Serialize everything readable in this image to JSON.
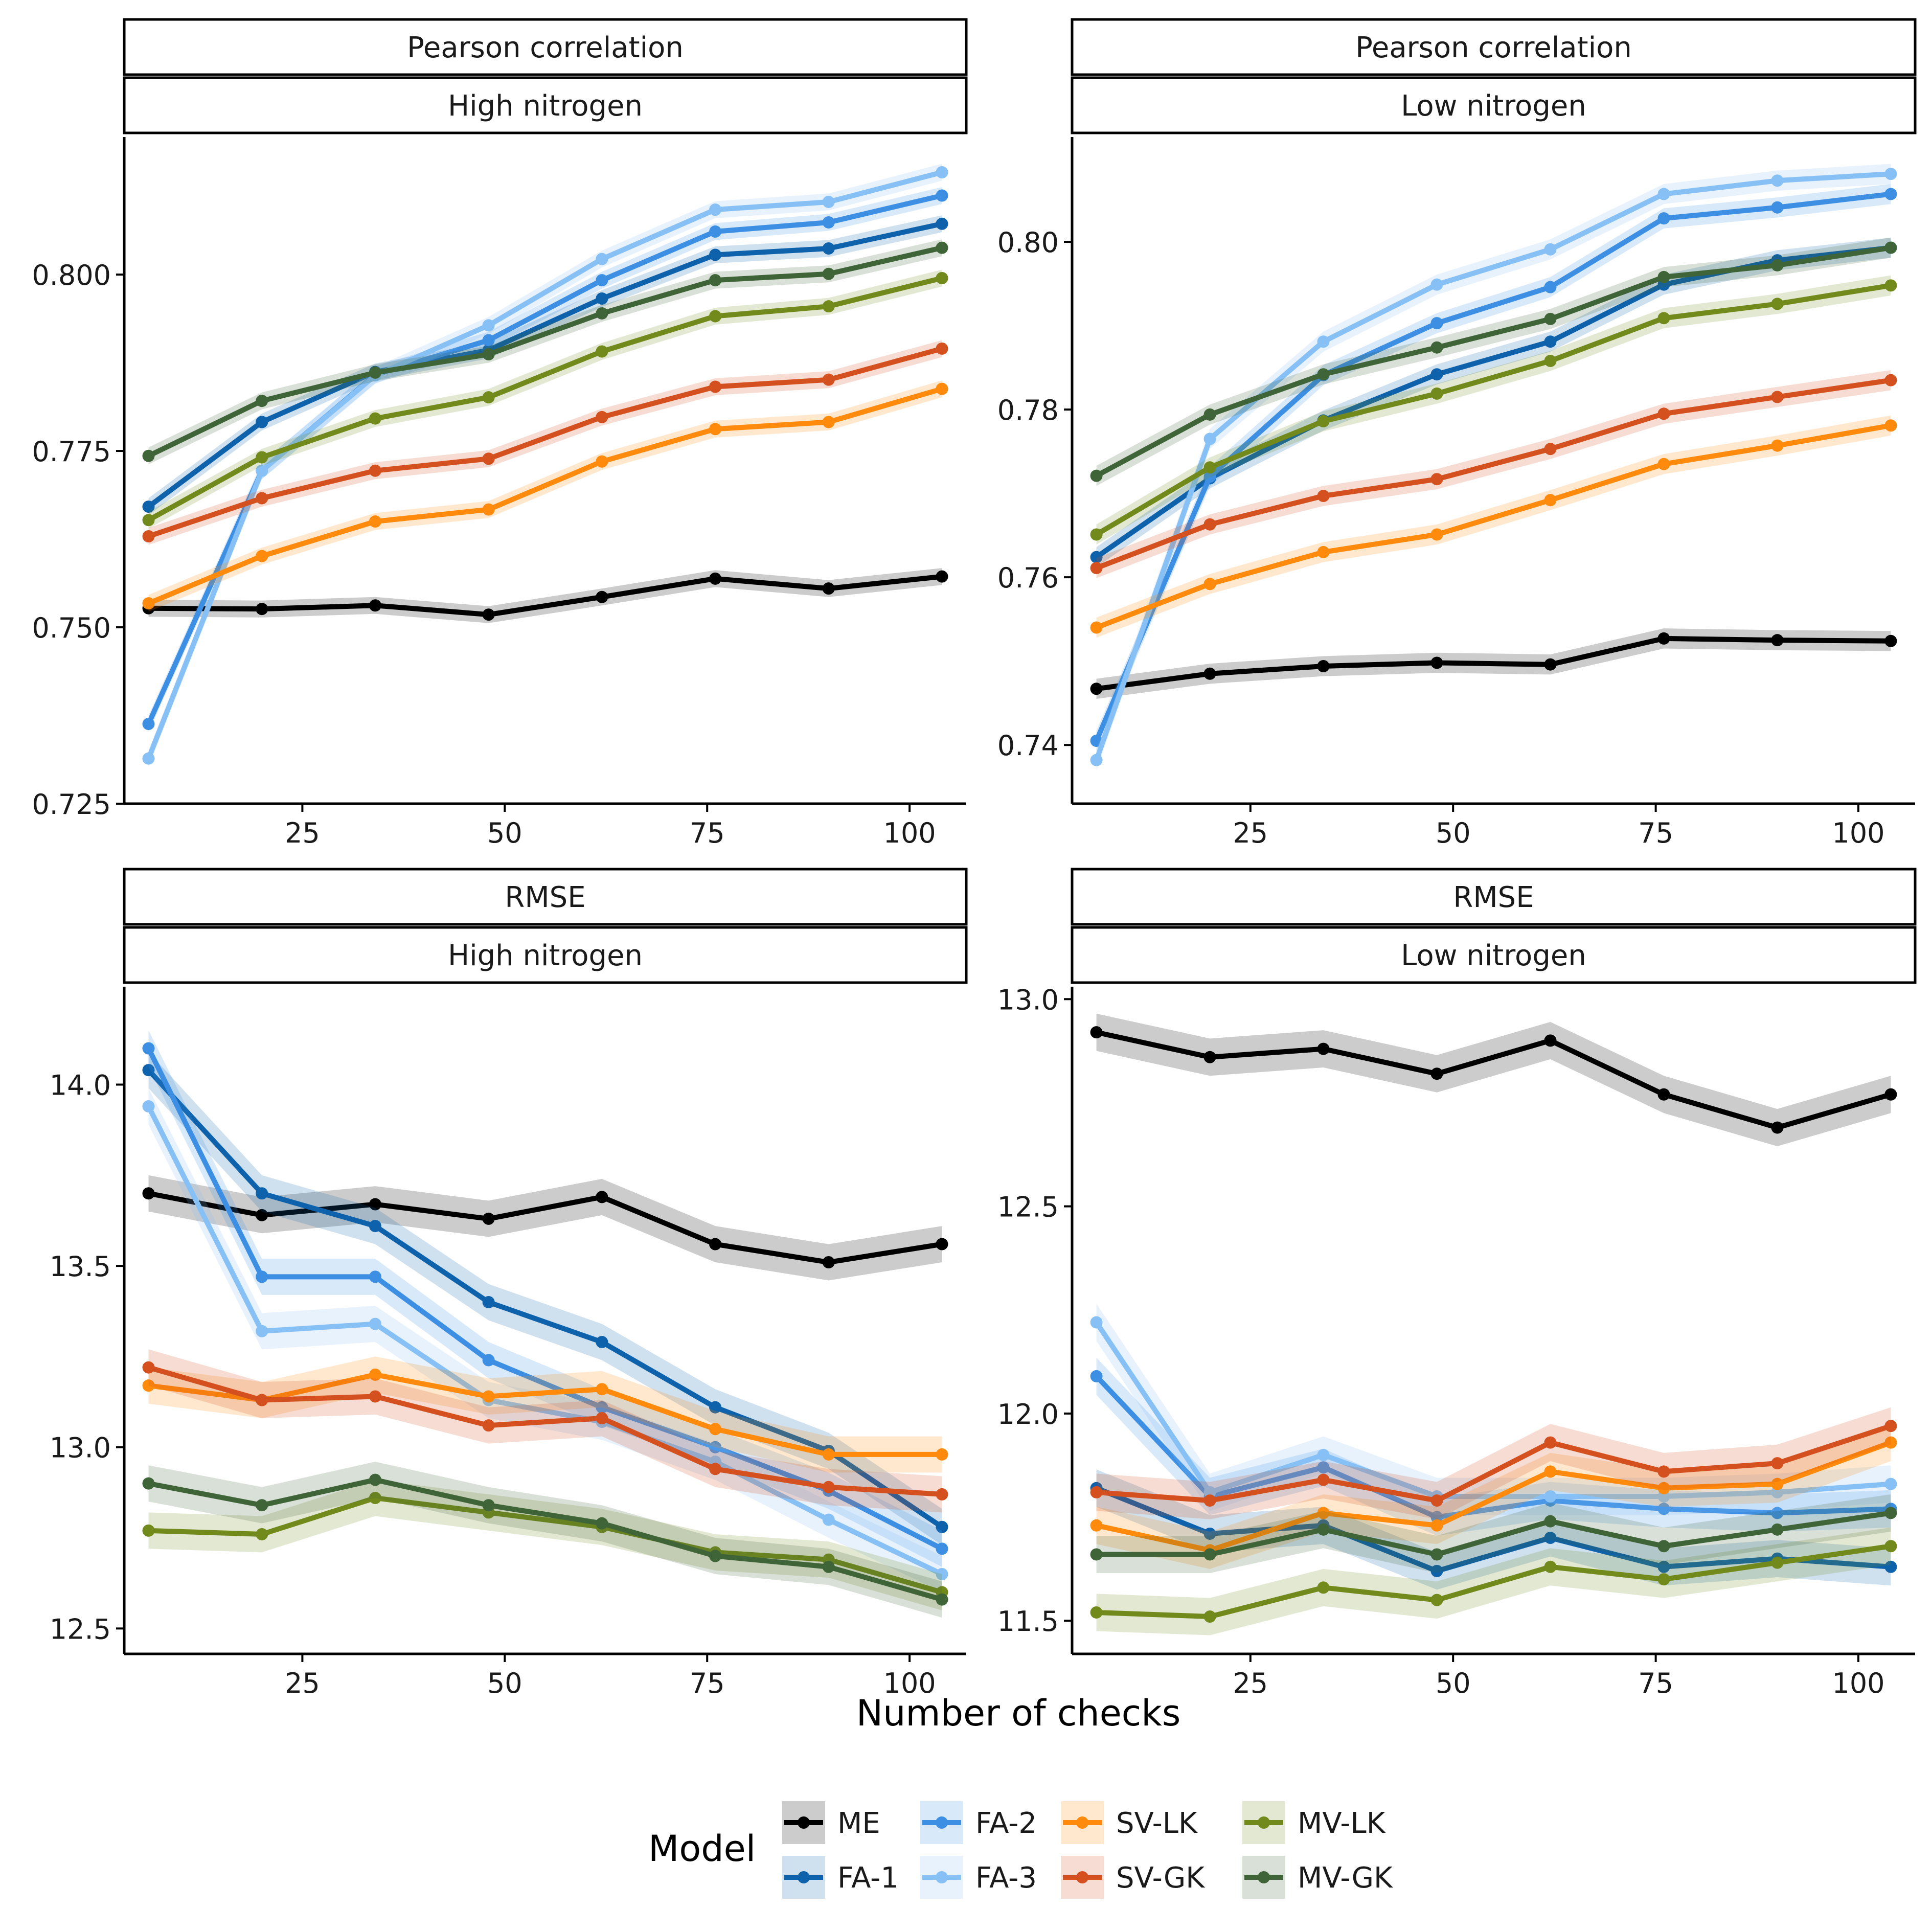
{
  "figure": {
    "xlabel": "Number of checks",
    "legend_title": "Model",
    "legend_placement": "bottom"
  },
  "models": [
    {
      "name": "ME",
      "color": "#000000"
    },
    {
      "name": "FA-1",
      "color": "#0e62ab"
    },
    {
      "name": "FA-2",
      "color": "#3d8fe4"
    },
    {
      "name": "FA-3",
      "color": "#86c0f4"
    },
    {
      "name": "SV-LK",
      "color": "#ff8a0c"
    },
    {
      "name": "SV-GK",
      "color": "#d4501e"
    },
    {
      "name": "MV-LK",
      "color": "#728a1c"
    },
    {
      "name": "MV-GK",
      "color": "#3f6438"
    }
  ],
  "chart_data": [
    {
      "type": "line",
      "strip_top": "Pearson correlation",
      "strip_bottom": "High nitrogen",
      "xlabel": "Number of checks",
      "x": [
        6,
        20,
        34,
        48,
        62,
        76,
        90,
        104
      ],
      "xlim": [
        3,
        107
      ],
      "xticks": [
        25,
        50,
        75,
        100
      ],
      "ylim": [
        0.725,
        0.8195
      ],
      "yticks": [
        0.725,
        0.75,
        0.775,
        0.8
      ],
      "ytick_labels": [
        "0.725",
        "0.750",
        "0.775",
        "0.800"
      ],
      "band": 0.0012,
      "series": [
        {
          "name": "ME",
          "values": [
            0.7527,
            0.7526,
            0.7531,
            0.7518,
            0.7543,
            0.7569,
            0.7555,
            0.7572
          ]
        },
        {
          "name": "FA-1",
          "values": [
            0.7671,
            0.7791,
            0.7862,
            0.7893,
            0.7966,
            0.8028,
            0.8037,
            0.8072
          ]
        },
        {
          "name": "FA-2",
          "values": [
            0.7363,
            0.7722,
            0.7858,
            0.7907,
            0.7992,
            0.8061,
            0.8074,
            0.8112
          ]
        },
        {
          "name": "FA-3",
          "values": [
            0.7314,
            0.7722,
            0.7857,
            0.7928,
            0.8022,
            0.8092,
            0.8103,
            0.8145
          ]
        },
        {
          "name": "SV-LK",
          "values": [
            0.7534,
            0.7601,
            0.765,
            0.7667,
            0.7735,
            0.7781,
            0.7791,
            0.7838
          ]
        },
        {
          "name": "SV-GK",
          "values": [
            0.7629,
            0.7683,
            0.7722,
            0.7739,
            0.7798,
            0.7841,
            0.7851,
            0.7895
          ]
        },
        {
          "name": "MV-LK",
          "values": [
            0.7652,
            0.7741,
            0.7796,
            0.7826,
            0.7891,
            0.7941,
            0.7955,
            0.7995
          ]
        },
        {
          "name": "MV-GK",
          "values": [
            0.7743,
            0.7821,
            0.7861,
            0.7887,
            0.7945,
            0.7992,
            0.8001,
            0.8038
          ]
        }
      ]
    },
    {
      "type": "line",
      "strip_top": "Pearson correlation",
      "strip_bottom": "Low nitrogen",
      "xlabel": "Number of checks",
      "x": [
        6,
        20,
        34,
        48,
        62,
        76,
        90,
        104
      ],
      "xlim": [
        3,
        107
      ],
      "xticks": [
        25,
        50,
        75,
        100
      ],
      "ylim": [
        0.733,
        0.8125
      ],
      "yticks": [
        0.74,
        0.76,
        0.78,
        0.8
      ],
      "ytick_labels": [
        "0.74",
        "0.76",
        "0.78",
        "0.80"
      ],
      "band": 0.0012,
      "series": [
        {
          "name": "ME",
          "values": [
            0.7467,
            0.7485,
            0.7494,
            0.7498,
            0.7496,
            0.7527,
            0.7525,
            0.7524
          ]
        },
        {
          "name": "FA-1",
          "values": [
            0.7624,
            0.7718,
            0.7787,
            0.7842,
            0.7881,
            0.7949,
            0.7978,
            0.7993
          ]
        },
        {
          "name": "FA-2",
          "values": [
            0.7405,
            0.772,
            0.7841,
            0.7903,
            0.7946,
            0.8028,
            0.8041,
            0.8057
          ]
        },
        {
          "name": "FA-3",
          "values": [
            0.7382,
            0.7765,
            0.7881,
            0.7949,
            0.7991,
            0.8057,
            0.8073,
            0.8081
          ]
        },
        {
          "name": "SV-LK",
          "values": [
            0.754,
            0.7592,
            0.763,
            0.7651,
            0.7692,
            0.7735,
            0.7757,
            0.7781
          ]
        },
        {
          "name": "SV-GK",
          "values": [
            0.7611,
            0.7663,
            0.7697,
            0.7717,
            0.7753,
            0.7795,
            0.7815,
            0.7835
          ]
        },
        {
          "name": "MV-LK",
          "values": [
            0.7651,
            0.7731,
            0.7786,
            0.7819,
            0.7858,
            0.7909,
            0.7926,
            0.7948
          ]
        },
        {
          "name": "MV-GK",
          "values": [
            0.7721,
            0.7794,
            0.7842,
            0.7874,
            0.7908,
            0.7958,
            0.7972,
            0.7993
          ]
        }
      ]
    },
    {
      "type": "line",
      "strip_top": "RMSE",
      "strip_bottom": "High nitrogen",
      "xlabel": "Number of checks",
      "x": [
        6,
        20,
        34,
        48,
        62,
        76,
        90,
        104
      ],
      "xlim": [
        3,
        107
      ],
      "xticks": [
        25,
        50,
        75,
        100
      ],
      "ylim": [
        12.43,
        14.27
      ],
      "yticks": [
        12.5,
        13.0,
        13.5,
        14.0
      ],
      "ytick_labels": [
        "12.5",
        "13.0",
        "13.5",
        "14.0"
      ],
      "band": 0.05,
      "series": [
        {
          "name": "ME",
          "values": [
            13.7,
            13.64,
            13.67,
            13.63,
            13.69,
            13.56,
            13.51,
            13.56
          ]
        },
        {
          "name": "FA-1",
          "values": [
            14.04,
            13.7,
            13.61,
            13.4,
            13.29,
            13.11,
            12.99,
            12.78
          ]
        },
        {
          "name": "FA-2",
          "values": [
            14.1,
            13.47,
            13.47,
            13.24,
            13.11,
            13.0,
            12.88,
            12.72
          ]
        },
        {
          "name": "FA-3",
          "values": [
            13.94,
            13.32,
            13.34,
            13.13,
            13.07,
            12.96,
            12.8,
            12.65
          ]
        },
        {
          "name": "SV-LK",
          "values": [
            13.17,
            13.13,
            13.2,
            13.14,
            13.16,
            13.05,
            12.98,
            12.98
          ]
        },
        {
          "name": "SV-GK",
          "values": [
            13.22,
            13.13,
            13.14,
            13.06,
            13.08,
            12.94,
            12.89,
            12.87
          ]
        },
        {
          "name": "MV-LK",
          "values": [
            12.77,
            12.76,
            12.86,
            12.82,
            12.78,
            12.71,
            12.69,
            12.6
          ]
        },
        {
          "name": "MV-GK",
          "values": [
            12.9,
            12.84,
            12.91,
            12.84,
            12.79,
            12.7,
            12.67,
            12.58
          ]
        }
      ]
    },
    {
      "type": "line",
      "strip_top": "RMSE",
      "strip_bottom": "Low nitrogen",
      "xlabel": "Number of checks",
      "x": [
        6,
        20,
        34,
        48,
        62,
        76,
        90,
        104
      ],
      "xlim": [
        3,
        107
      ],
      "xticks": [
        25,
        50,
        75,
        100
      ],
      "ylim": [
        11.42,
        13.03
      ],
      "yticks": [
        11.5,
        12.0,
        12.5,
        13.0
      ],
      "ytick_labels": [
        "11.5",
        "12.0",
        "12.5",
        "13.0"
      ],
      "band": 0.045,
      "series": [
        {
          "name": "ME",
          "values": [
            12.92,
            12.86,
            12.88,
            12.82,
            12.9,
            12.77,
            12.69,
            12.77
          ]
        },
        {
          "name": "FA-1",
          "values": [
            11.82,
            11.71,
            11.73,
            11.62,
            11.7,
            11.63,
            11.65,
            11.63
          ]
        },
        {
          "name": "FA-2",
          "values": [
            12.09,
            11.8,
            11.87,
            11.75,
            11.79,
            11.77,
            11.76,
            11.77
          ]
        },
        {
          "name": "FA-3",
          "values": [
            12.22,
            11.81,
            11.9,
            11.8,
            11.8,
            11.8,
            11.81,
            11.83
          ]
        },
        {
          "name": "SV-LK",
          "values": [
            11.73,
            11.67,
            11.76,
            11.73,
            11.86,
            11.82,
            11.83,
            11.93
          ]
        },
        {
          "name": "SV-GK",
          "values": [
            11.81,
            11.79,
            11.84,
            11.79,
            11.93,
            11.86,
            11.88,
            11.97
          ]
        },
        {
          "name": "MV-LK",
          "values": [
            11.52,
            11.51,
            11.58,
            11.55,
            11.63,
            11.6,
            11.64,
            11.68
          ]
        },
        {
          "name": "MV-GK",
          "values": [
            11.66,
            11.66,
            11.72,
            11.66,
            11.74,
            11.68,
            11.72,
            11.76
          ]
        }
      ]
    }
  ]
}
